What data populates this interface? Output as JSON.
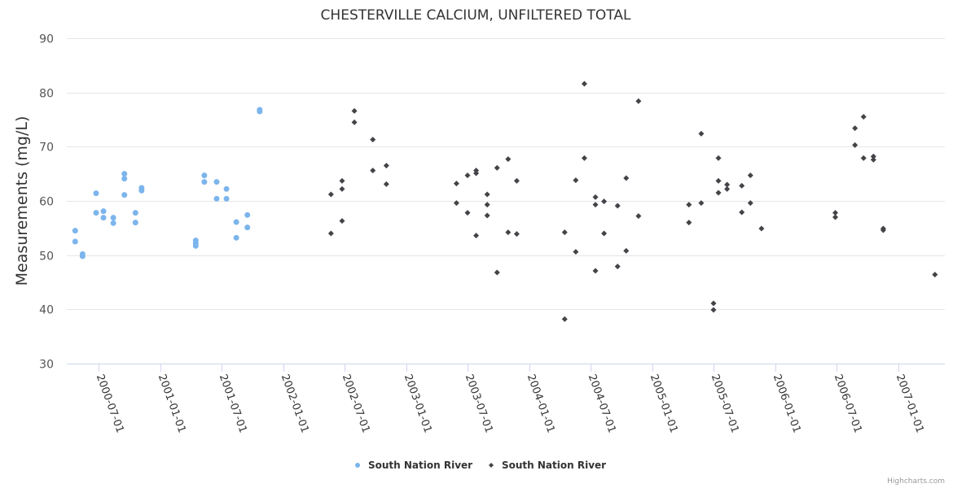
{
  "chart_data": {
    "type": "scatter",
    "title": "CHESTERVILLE CALCIUM, UNFILTERED TOTAL",
    "xlabel": "",
    "ylabel": "Measurements (mg/L)",
    "ylim": [
      30,
      90
    ],
    "yticks": [
      "30",
      "40",
      "50",
      "60",
      "70",
      "80",
      "90"
    ],
    "xlim": [
      2000.08,
      2007.34
    ],
    "xticks": [
      {
        "label": "2000-07-01",
        "value": 2000.5
      },
      {
        "label": "2001-01-01",
        "value": 2001.0
      },
      {
        "label": "2001-07-01",
        "value": 2001.5
      },
      {
        "label": "2002-01-01",
        "value": 2002.0
      },
      {
        "label": "2002-07-01",
        "value": 2002.5
      },
      {
        "label": "2003-01-01",
        "value": 2003.0
      },
      {
        "label": "2003-07-01",
        "value": 2003.5
      },
      {
        "label": "2004-01-01",
        "value": 2004.0
      },
      {
        "label": "2004-07-01",
        "value": 2004.5
      },
      {
        "label": "2005-01-01",
        "value": 2005.0
      },
      {
        "label": "2005-07-01",
        "value": 2005.5
      },
      {
        "label": "2006-01-01",
        "value": 2006.0
      },
      {
        "label": "2006-07-01",
        "value": 2006.5
      },
      {
        "label": "2007-01-01",
        "value": 2007.0
      }
    ],
    "grid": true,
    "legend_position": "bottom-center",
    "series": [
      {
        "name": "South Nation River",
        "color": "#7cb5ec",
        "marker": "circle",
        "points": [
          [
            2000.31,
            54.5
          ],
          [
            2000.31,
            52.5
          ],
          [
            2000.37,
            50.2
          ],
          [
            2000.37,
            49.8
          ],
          [
            2000.48,
            61.4
          ],
          [
            2000.48,
            57.8
          ],
          [
            2000.54,
            58.1
          ],
          [
            2000.54,
            56.9
          ],
          [
            2000.62,
            56.9
          ],
          [
            2000.62,
            55.9
          ],
          [
            2000.71,
            65.0
          ],
          [
            2000.71,
            64.1
          ],
          [
            2000.71,
            61.1
          ],
          [
            2000.8,
            57.8
          ],
          [
            2000.8,
            56.0
          ],
          [
            2000.85,
            62.4
          ],
          [
            2000.85,
            61.9
          ],
          [
            2001.29,
            52.7
          ],
          [
            2001.29,
            52.2
          ],
          [
            2001.29,
            51.7
          ],
          [
            2001.36,
            64.7
          ],
          [
            2001.36,
            63.5
          ],
          [
            2001.46,
            63.5
          ],
          [
            2001.46,
            60.4
          ],
          [
            2001.54,
            62.2
          ],
          [
            2001.54,
            60.4
          ],
          [
            2001.62,
            56.1
          ],
          [
            2001.62,
            53.2
          ],
          [
            2001.71,
            57.4
          ],
          [
            2001.71,
            55.1
          ],
          [
            2001.81,
            76.8
          ],
          [
            2001.81,
            76.5
          ]
        ]
      },
      {
        "name": "South Nation River",
        "color": "#434348",
        "marker": "diamond",
        "points": [
          [
            2002.39,
            61.2
          ],
          [
            2002.39,
            54.0
          ],
          [
            2002.48,
            63.7
          ],
          [
            2002.48,
            62.2
          ],
          [
            2002.48,
            56.3
          ],
          [
            2002.58,
            76.6
          ],
          [
            2002.58,
            74.5
          ],
          [
            2002.73,
            71.3
          ],
          [
            2002.73,
            65.6
          ],
          [
            2002.84,
            66.5
          ],
          [
            2002.84,
            63.1
          ],
          [
            2003.41,
            63.2
          ],
          [
            2003.41,
            59.6
          ],
          [
            2003.5,
            64.7
          ],
          [
            2003.5,
            57.8
          ],
          [
            2003.57,
            65.6
          ],
          [
            2003.57,
            65.1
          ],
          [
            2003.57,
            53.6
          ],
          [
            2003.66,
            61.2
          ],
          [
            2003.66,
            59.3
          ],
          [
            2003.66,
            57.3
          ],
          [
            2003.74,
            66.1
          ],
          [
            2003.74,
            46.8
          ],
          [
            2003.83,
            67.7
          ],
          [
            2003.83,
            54.2
          ],
          [
            2003.9,
            63.7
          ],
          [
            2003.9,
            53.9
          ],
          [
            2004.29,
            54.2
          ],
          [
            2004.29,
            38.2
          ],
          [
            2004.38,
            63.8
          ],
          [
            2004.38,
            50.6
          ],
          [
            2004.45,
            81.6
          ],
          [
            2004.45,
            67.9
          ],
          [
            2004.54,
            60.7
          ],
          [
            2004.54,
            59.3
          ],
          [
            2004.54,
            47.1
          ],
          [
            2004.61,
            59.9
          ],
          [
            2004.61,
            54.0
          ],
          [
            2004.72,
            59.1
          ],
          [
            2004.72,
            47.9
          ],
          [
            2004.79,
            64.2
          ],
          [
            2004.79,
            50.8
          ],
          [
            2004.89,
            78.4
          ],
          [
            2004.89,
            57.2
          ],
          [
            2005.3,
            59.3
          ],
          [
            2005.3,
            56.0
          ],
          [
            2005.4,
            72.4
          ],
          [
            2005.4,
            59.6
          ],
          [
            2005.5,
            41.1
          ],
          [
            2005.5,
            39.9
          ],
          [
            2005.54,
            67.9
          ],
          [
            2005.54,
            63.7
          ],
          [
            2005.54,
            61.5
          ],
          [
            2005.61,
            63.0
          ],
          [
            2005.61,
            62.2
          ],
          [
            2005.73,
            62.8
          ],
          [
            2005.73,
            57.9
          ],
          [
            2005.8,
            64.7
          ],
          [
            2005.8,
            59.6
          ],
          [
            2005.89,
            54.9
          ],
          [
            2006.49,
            57.8
          ],
          [
            2006.49,
            57.0
          ],
          [
            2006.65,
            73.4
          ],
          [
            2006.65,
            70.3
          ],
          [
            2006.72,
            75.5
          ],
          [
            2006.72,
            67.9
          ],
          [
            2006.8,
            68.2
          ],
          [
            2006.8,
            67.6
          ],
          [
            2006.88,
            54.9
          ],
          [
            2006.88,
            54.6
          ],
          [
            2007.3,
            46.4
          ]
        ]
      }
    ]
  },
  "credits": "Highcharts.com"
}
